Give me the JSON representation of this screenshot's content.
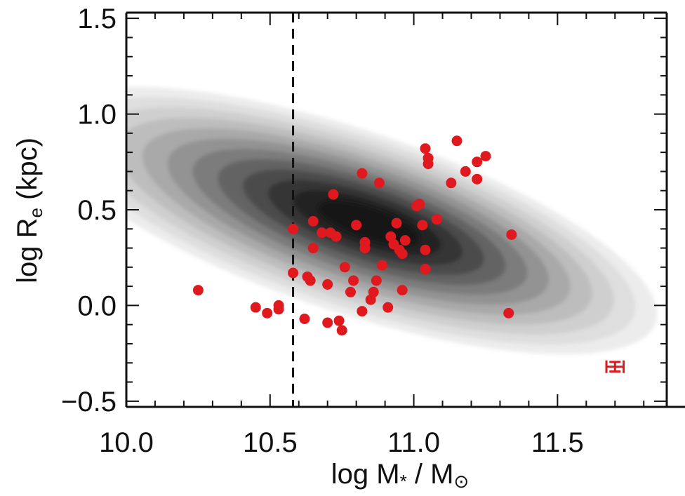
{
  "chart_data": {
    "type": "scatter",
    "title": "",
    "xlabel": {
      "main": "log M",
      "sub": "*",
      "rest": " / M",
      "sun": "⊙"
    },
    "ylabel": {
      "main": "log R",
      "sub": "e",
      "rest": " (kpc)"
    },
    "xlim": [
      10.0,
      11.88
    ],
    "ylim": [
      -0.53,
      1.53
    ],
    "x_ticks": [
      {
        "value": 10.0,
        "label": "10.0"
      },
      {
        "value": 10.5,
        "label": "10.5"
      },
      {
        "value": 11.0,
        "label": "11.0"
      },
      {
        "value": 11.5,
        "label": "11.5"
      }
    ],
    "y_ticks": [
      {
        "value": -0.5,
        "label": "−0.5"
      },
      {
        "value": 0.0,
        "label": "0.0"
      },
      {
        "value": 0.5,
        "label": "0.5"
      },
      {
        "value": 1.0,
        "label": "1.0"
      },
      {
        "value": 1.5,
        "label": "1.5"
      }
    ],
    "mass_limit_line": {
      "x": 10.58,
      "style": "dashed",
      "color": "#111111"
    },
    "density_background": {
      "description_colors": [
        "#ececec",
        "#dedede",
        "#cfcfcf",
        "#bdbdbd",
        "#a9a9a9",
        "#939393",
        "#7c7c7c",
        "#646464",
        "#4c4c4c",
        "#353535",
        "#222222",
        "#141414"
      ],
      "center": [
        10.85,
        0.43
      ],
      "slope": 0.5
    },
    "series": [
      {
        "color": "#e0191f",
        "points": [
          [
            10.25,
            0.08
          ],
          [
            10.45,
            -0.01
          ],
          [
            10.49,
            -0.04
          ],
          [
            10.53,
            -0.02
          ],
          [
            10.53,
            0.0
          ],
          [
            10.58,
            0.4
          ],
          [
            10.58,
            0.17
          ],
          [
            10.62,
            -0.07
          ],
          [
            10.63,
            0.15
          ],
          [
            10.64,
            0.13
          ],
          [
            10.65,
            0.44
          ],
          [
            10.65,
            0.3
          ],
          [
            10.68,
            0.38
          ],
          [
            10.7,
            0.11
          ],
          [
            10.71,
            0.38
          ],
          [
            10.72,
            0.58
          ],
          [
            10.73,
            0.36
          ],
          [
            10.7,
            -0.09
          ],
          [
            10.74,
            -0.08
          ],
          [
            10.75,
            -0.13
          ],
          [
            10.76,
            0.2
          ],
          [
            10.78,
            0.07
          ],
          [
            10.79,
            0.13
          ],
          [
            10.8,
            0.42
          ],
          [
            10.82,
            0.69
          ],
          [
            10.82,
            -0.03
          ],
          [
            10.83,
            0.3
          ],
          [
            10.83,
            0.33
          ],
          [
            10.85,
            0.03
          ],
          [
            10.86,
            0.07
          ],
          [
            10.87,
            0.13
          ],
          [
            10.88,
            0.64
          ],
          [
            10.89,
            0.21
          ],
          [
            10.91,
            -0.01
          ],
          [
            10.92,
            0.36
          ],
          [
            10.93,
            0.32
          ],
          [
            10.94,
            0.43
          ],
          [
            10.95,
            0.29
          ],
          [
            10.96,
            0.27
          ],
          [
            10.96,
            0.08
          ],
          [
            10.97,
            0.34
          ],
          [
            11.01,
            0.52
          ],
          [
            11.02,
            0.53
          ],
          [
            11.03,
            0.42
          ],
          [
            11.04,
            0.29
          ],
          [
            11.04,
            0.19
          ],
          [
            11.04,
            0.82
          ],
          [
            11.05,
            0.77
          ],
          [
            11.05,
            0.74
          ],
          [
            11.08,
            0.45
          ],
          [
            11.13,
            0.64
          ],
          [
            11.15,
            0.86
          ],
          [
            11.18,
            0.7
          ],
          [
            11.22,
            0.66
          ],
          [
            11.22,
            0.75
          ],
          [
            11.25,
            0.78
          ],
          [
            11.33,
            -0.04
          ],
          [
            11.34,
            0.37
          ]
        ]
      }
    ],
    "error_bar": {
      "x": 11.7,
      "y": -0.32,
      "xerr": 0.06,
      "yerr": 0.05,
      "color": "#e0191f"
    }
  }
}
